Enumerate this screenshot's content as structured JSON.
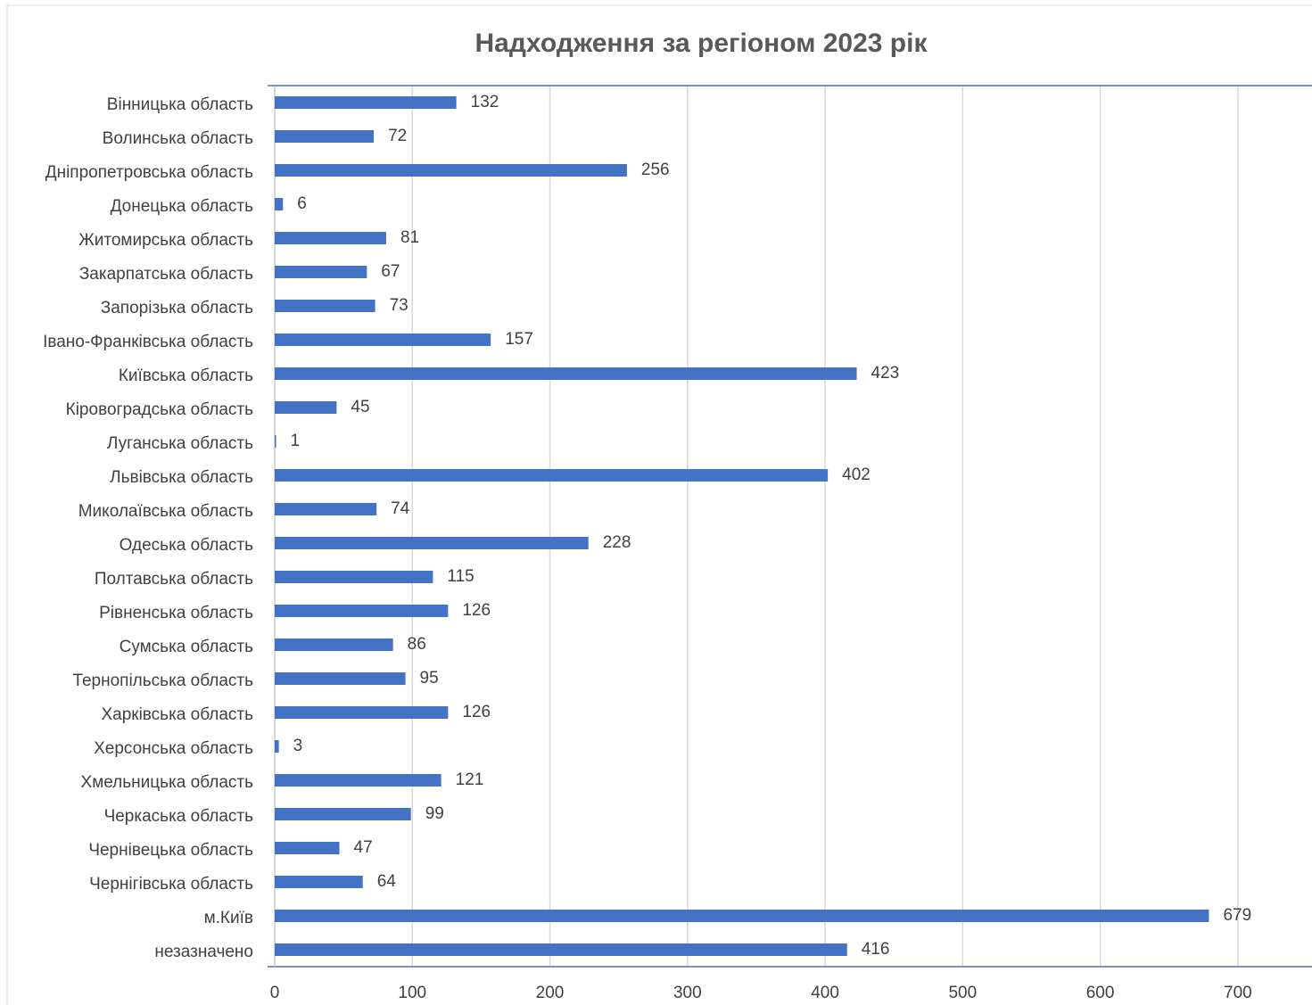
{
  "chart_data": {
    "type": "barh",
    "title": "Надходження за регіоном 2023 рік",
    "categories": [
      "Вінницька область",
      "Волинська область",
      "Дніпропетровська область",
      "Донецька область",
      "Житомирська область",
      "Закарпатська область",
      "Запорізька область",
      "Івано-Франківська область",
      "Київська область",
      "Кіровоградська область",
      "Луганська область",
      "Львівська область",
      "Миколаївська область",
      "Одеська область",
      "Полтавська область",
      "Рівненська область",
      "Сумська область",
      "Тернопільська область",
      "Харківська область",
      "Херсонська область",
      "Хмельницька область",
      "Черкаська область",
      "Чернівецька область",
      "Чернігівська область",
      "м.Київ",
      "незазначено"
    ],
    "values": [
      132,
      72,
      256,
      6,
      81,
      67,
      73,
      157,
      423,
      45,
      1,
      402,
      74,
      228,
      115,
      126,
      86,
      95,
      126,
      3,
      121,
      99,
      47,
      64,
      679,
      416
    ],
    "color": "#4472c4",
    "xlim": [
      0,
      750
    ],
    "xticks": [
      0,
      100,
      200,
      300,
      400,
      500,
      600,
      700
    ],
    "grid": true
  }
}
